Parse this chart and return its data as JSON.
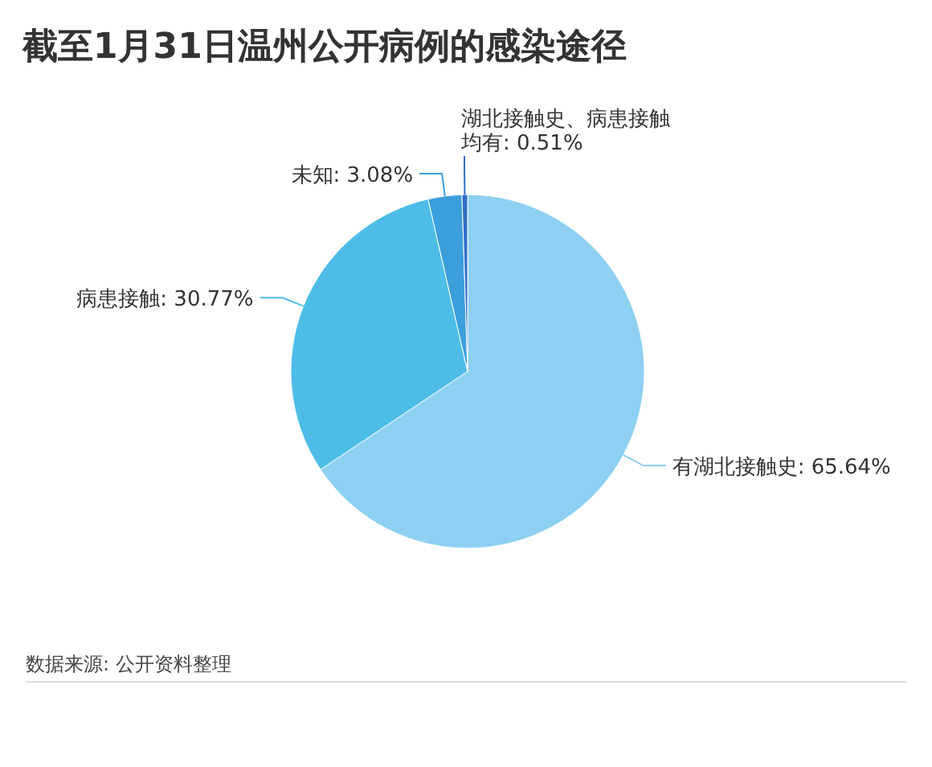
{
  "chart_data": {
    "type": "pie",
    "title": "截至1月31日温州公开病例的感染途径",
    "categories": [
      "有湖北接触史",
      "病患接触",
      "未知",
      "湖北接触史、病患接触均有"
    ],
    "values": [
      65.64,
      30.77,
      3.08,
      0.51
    ],
    "colors": [
      "#8dd0f2",
      "#4dbde8",
      "#3c9fdc",
      "#2f6fc8"
    ],
    "value_labels": [
      ": 65.64%",
      ": 30.77%",
      ": 3.08%",
      ": 0.51%"
    ],
    "annotations": [
      "数据来源: 公开资料整理"
    ]
  }
}
